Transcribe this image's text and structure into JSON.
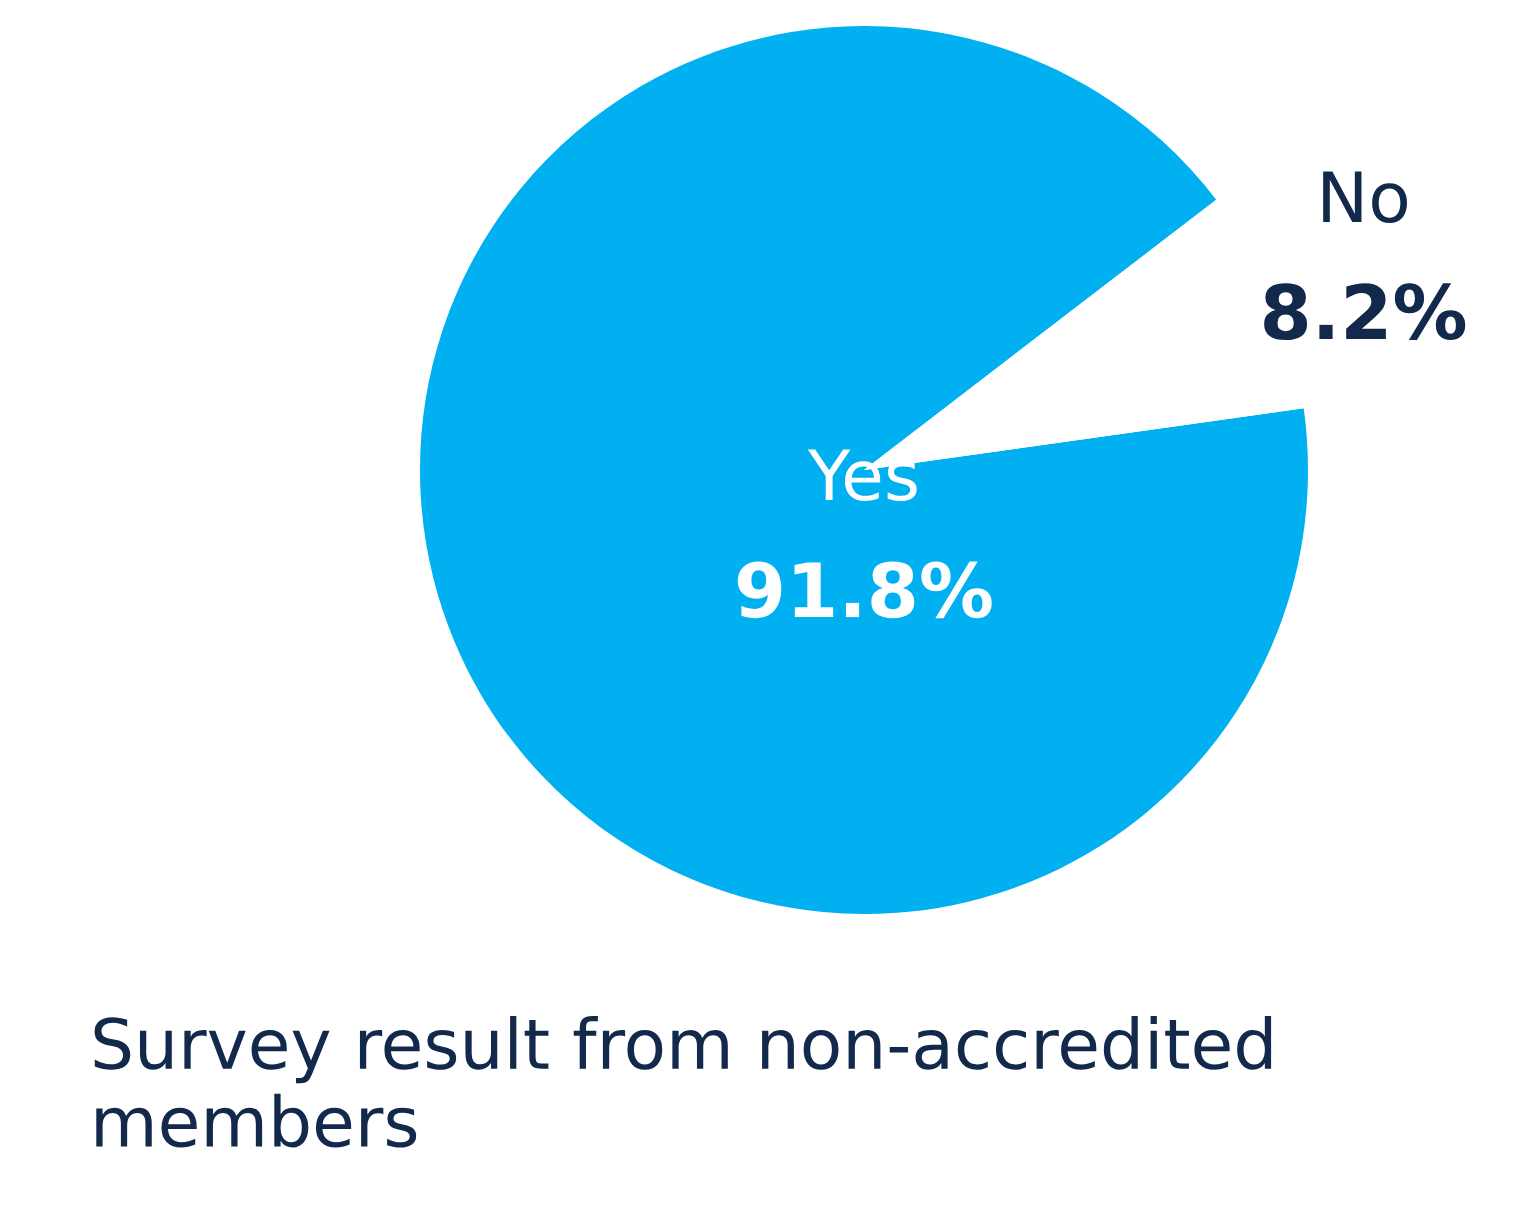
{
  "chart_data": {
    "type": "pie",
    "title": "Survey result from non-accredited members",
    "categories": [
      "Yes",
      "No"
    ],
    "values": [
      91.8,
      8.2
    ],
    "colors": [
      "#00b0f0",
      "#ffffff"
    ],
    "value_labels": [
      "91.8%",
      "8.2%"
    ],
    "legend": false
  }
}
